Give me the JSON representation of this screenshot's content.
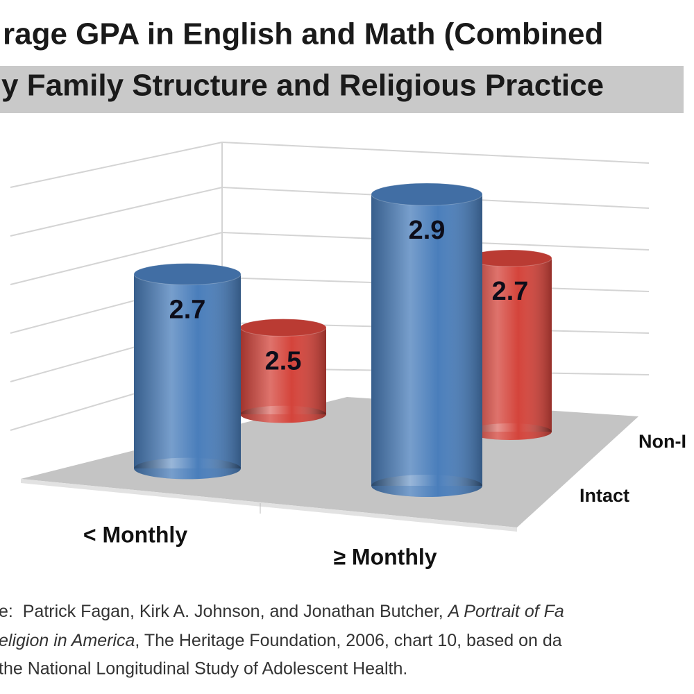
{
  "chart_data": {
    "type": "bar3d",
    "title": "rage GPA in English and Math (Combined",
    "subtitle": "y Family Structure and Religious Practice",
    "categories": [
      "< Monthly",
      "≥ Monthly"
    ],
    "series": [
      {
        "name": "Intact",
        "color": "#4a7ebb",
        "values": [
          2.7,
          2.9
        ]
      },
      {
        "name": "Non-I",
        "color": "#d4443b",
        "values": [
          2.5,
          2.7
        ]
      }
    ],
    "ylim": [
      2.3,
      3.1
    ]
  },
  "source": {
    "line1": "e:  Patrick Fagan, Kirk A. Johnson, and Jonathan Butcher, ",
    "line1_italic": "A Portrait of Fa",
    "line2_italic": "eligion in America",
    "line2": ", The Heritage Foundation, 2006, chart 10, based on da",
    "line3": "the National Longitudinal Study of Adolescent Health."
  }
}
